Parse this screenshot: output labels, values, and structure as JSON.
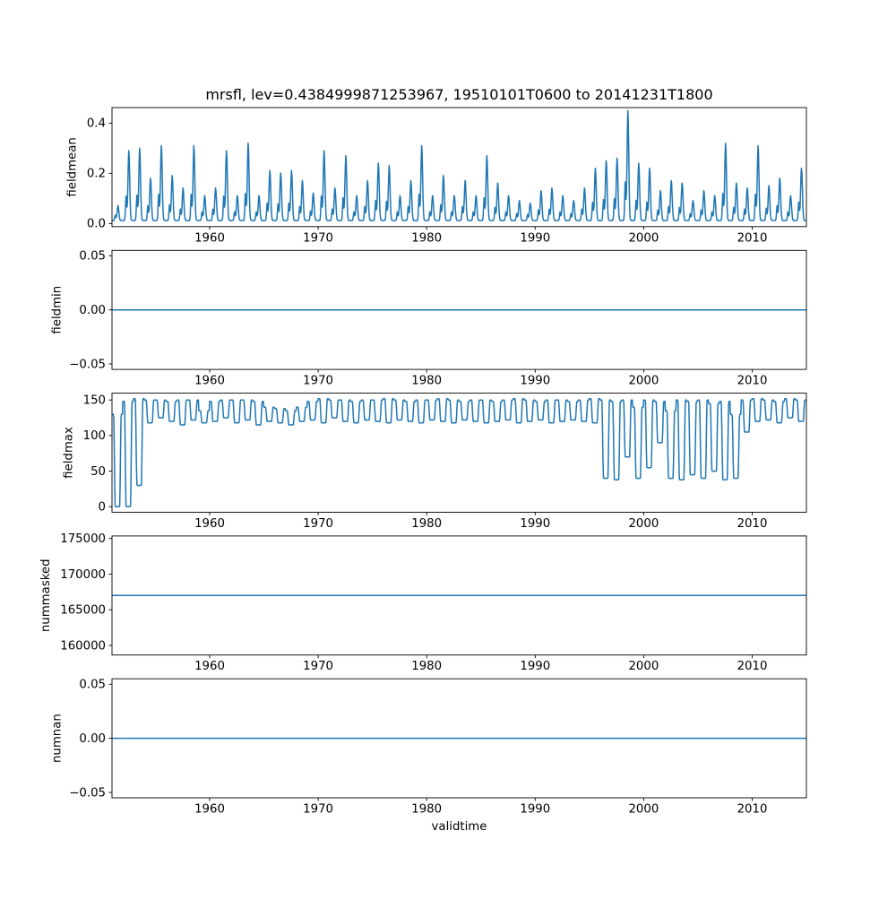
{
  "figure": {
    "title": "mrsfl, lev=0.4384999871253967, 19510101T0600 to 20141231T1800",
    "xlabel": "validtime",
    "x_start": 1951,
    "x_end": 2015,
    "xticks": [
      1960,
      1970,
      1980,
      1990,
      2000,
      2010
    ],
    "xtick_labels": [
      "1960",
      "1970",
      "1980",
      "1990",
      "2000",
      "2010"
    ],
    "line_color": "#1f77b4",
    "spine_color": "#000000",
    "background": "#ffffff"
  },
  "chart_data": [
    {
      "type": "line",
      "title": "mrsfl, lev=0.4384999871253967, 19510101T0600 to 20141231T1800",
      "ylabel": "fieldmean",
      "ylim": [
        -0.012,
        0.462
      ],
      "yticks": [
        0.0,
        0.2,
        0.4
      ],
      "ytick_labels": [
        "0.0",
        "0.2",
        "0.4"
      ],
      "series_kind": "seasonal_peaks",
      "base": 0.012,
      "annual_peaks": [
        0.06,
        0.28,
        0.29,
        0.17,
        0.3,
        0.18,
        0.13,
        0.3,
        0.1,
        0.13,
        0.28,
        0.1,
        0.31,
        0.1,
        0.2,
        0.19,
        0.2,
        0.16,
        0.11,
        0.28,
        0.13,
        0.26,
        0.1,
        0.16,
        0.23,
        0.22,
        0.1,
        0.16,
        0.3,
        0.1,
        0.18,
        0.1,
        0.16,
        0.1,
        0.26,
        0.15,
        0.1,
        0.08,
        0.07,
        0.12,
        0.13,
        0.1,
        0.08,
        0.13,
        0.21,
        0.24,
        0.25,
        0.44,
        0.23,
        0.21,
        0.12,
        0.16,
        0.15,
        0.08,
        0.12,
        0.1,
        0.31,
        0.15,
        0.13,
        0.3,
        0.14,
        0.17,
        0.1,
        0.21
      ]
    },
    {
      "type": "line",
      "ylabel": "fieldmin",
      "ylim": [
        -0.055,
        0.055
      ],
      "yticks": [
        -0.05,
        0.0,
        0.05
      ],
      "ytick_labels": [
        "−0.05",
        "0.00",
        "0.05"
      ],
      "series_kind": "constant",
      "value": 0.0
    },
    {
      "type": "line",
      "ylabel": "fieldmax",
      "ylim": [
        -7.6,
        159.6
      ],
      "yticks": [
        0,
        50,
        100,
        150
      ],
      "ytick_labels": [
        "0",
        "50",
        "100",
        "150"
      ],
      "series_kind": "square_seasonal",
      "annual_high": [
        130,
        148,
        152,
        150,
        150,
        148,
        150,
        150,
        135,
        148,
        150,
        150,
        150,
        148,
        140,
        138,
        135,
        140,
        148,
        152,
        150,
        150,
        148,
        150,
        150,
        152,
        150,
        148,
        150,
        150,
        152,
        150,
        148,
        150,
        150,
        148,
        150,
        152,
        150,
        148,
        150,
        150,
        148,
        150,
        152,
        150,
        148,
        150,
        140,
        150,
        148,
        135,
        150,
        148,
        150,
        145,
        148,
        130,
        150,
        152,
        150,
        148,
        152,
        150
      ],
      "annual_low": [
        0,
        0,
        30,
        118,
        125,
        120,
        115,
        122,
        118,
        120,
        125,
        118,
        122,
        115,
        120,
        118,
        115,
        120,
        122,
        118,
        125,
        120,
        118,
        122,
        120,
        118,
        122,
        120,
        118,
        122,
        120,
        118,
        122,
        120,
        118,
        120,
        122,
        118,
        120,
        122,
        118,
        120,
        122,
        120,
        118,
        40,
        38,
        70,
        40,
        55,
        90,
        40,
        38,
        45,
        40,
        50,
        38,
        40,
        105,
        120,
        122,
        118,
        125,
        120
      ]
    },
    {
      "type": "line",
      "ylabel": "nummasked",
      "ylim": [
        158650,
        175350
      ],
      "yticks": [
        160000,
        165000,
        170000,
        175000
      ],
      "ytick_labels": [
        "160000",
        "165000",
        "170000",
        "175000"
      ],
      "series_kind": "constant",
      "value": 167000
    },
    {
      "type": "line",
      "ylabel": "numnan",
      "ylim": [
        -0.055,
        0.055
      ],
      "yticks": [
        -0.05,
        0.0,
        0.05
      ],
      "ytick_labels": [
        "−0.05",
        "0.00",
        "0.05"
      ],
      "series_kind": "constant",
      "value": 0.0
    }
  ]
}
